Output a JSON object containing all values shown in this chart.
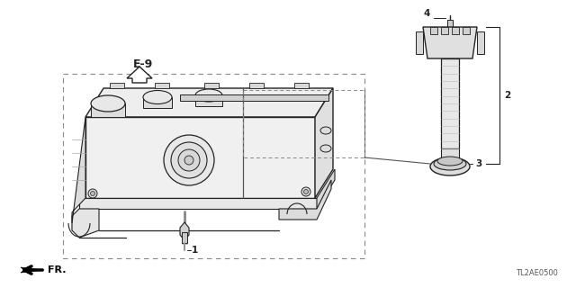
{
  "bg_color": "#ffffff",
  "line_color": "#222222",
  "dashed_color": "#666666",
  "label_color": "#111111",
  "diagram_code": "TL2AE0500",
  "reference_label": "E-9",
  "fr_label": "FR.",
  "part_labels": [
    "1",
    "2",
    "3",
    "4"
  ],
  "cover_fill": "#f2f2f2",
  "cover_dark": "#d8d8d8",
  "cover_mid": "#e5e5e5"
}
